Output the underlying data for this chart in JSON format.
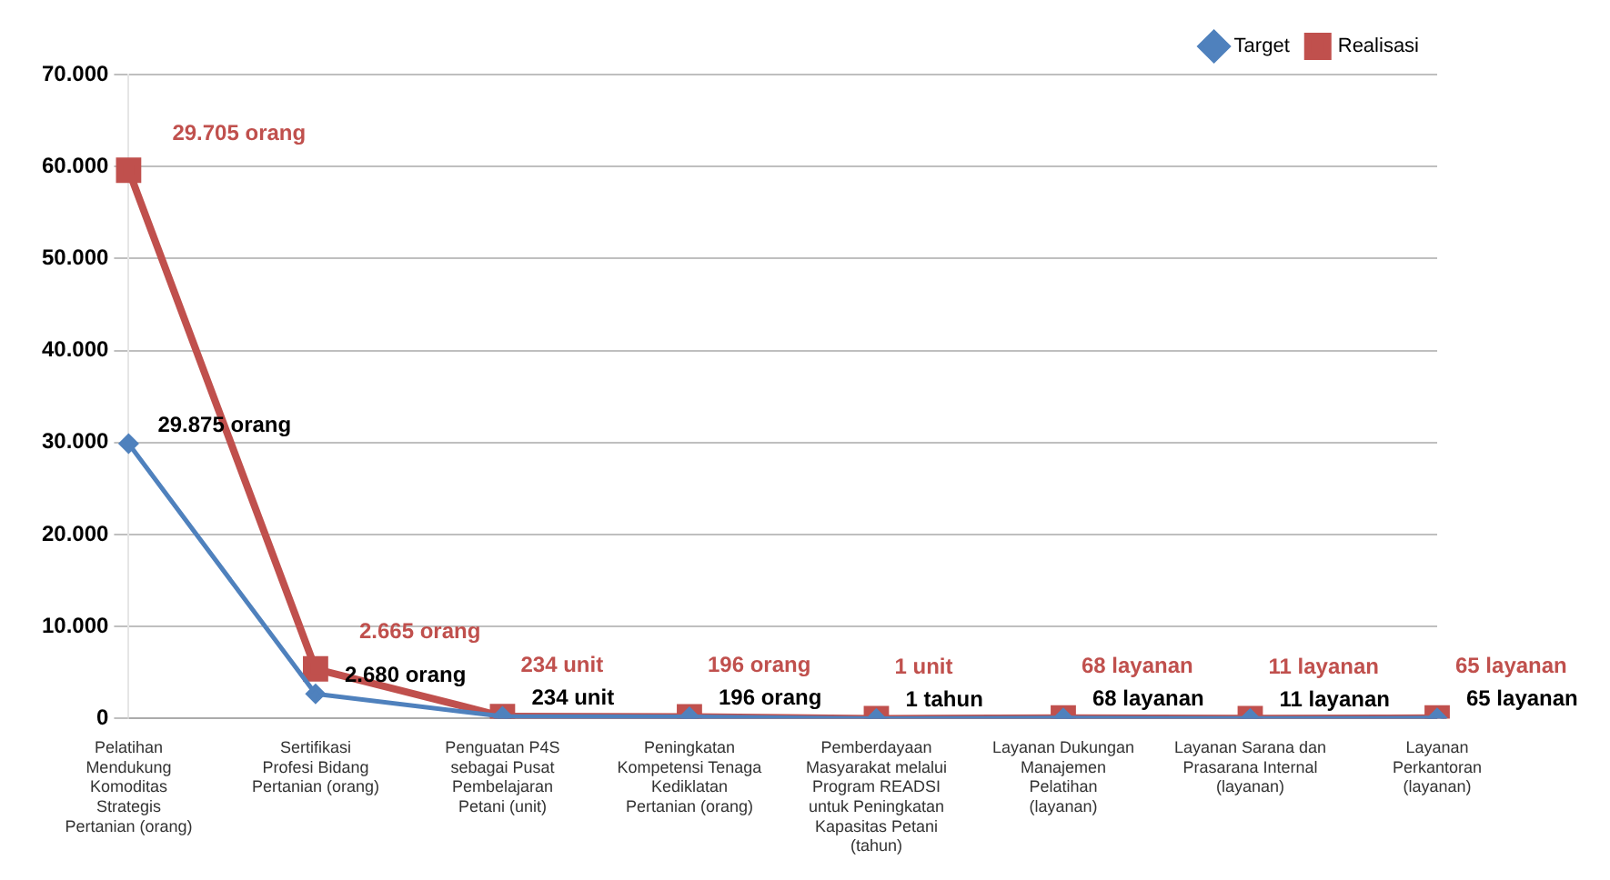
{
  "chart_data": {
    "type": "line",
    "categories": [
      "Pelatihan Mendukung Komoditas Strategis Pertanian (orang)",
      "Sertifikasi Profesi Bidang Pertanian (orang)",
      "Penguatan P4S sebagai Pusat Pembelajaran Petani (unit)",
      "Peningkatan Kompetensi Tenaga Kediklatan Pertanian (orang)",
      "Pemberdayaan Masyarakat melalui Program READSI untuk Peningkatan Kapasitas Petani (tahun)",
      "Layanan Dukungan Manajemen Pelatihan (layanan)",
      "Layanan Sarana dan Prasarana Internal (layanan)",
      "Layanan Perkantoran (layanan)"
    ],
    "series": [
      {
        "name": "Realisasi",
        "color": "#c0504d",
        "marker": "square",
        "values": [
          59600,
          5400,
          234,
          196,
          1,
          68,
          11,
          65
        ],
        "value_labels": [
          null,
          null,
          "234 unit",
          "196 orang",
          "1 unit",
          "68 layanan",
          "11 layanan",
          "65 layanan"
        ]
      },
      {
        "name": "Target",
        "color": "#4f81bd",
        "marker": "diamond",
        "values": [
          29875,
          2680,
          234,
          196,
          1,
          68,
          11,
          65
        ],
        "value_labels": [
          "29.875 orang",
          "2.680 orang",
          "234 unit",
          "196 orang",
          "1 tahun",
          "68 layanan",
          "11 layanan",
          "65 layanan"
        ]
      }
    ],
    "ylim": [
      0,
      70000
    ],
    "yticks": [
      {
        "value": 0,
        "label": "0"
      },
      {
        "value": 10000,
        "label": "10.000"
      },
      {
        "value": 20000,
        "label": "20.000"
      },
      {
        "value": 30000,
        "label": "30.000"
      },
      {
        "value": 40000,
        "label": "40.000"
      },
      {
        "value": 50000,
        "label": "50.000"
      },
      {
        "value": 60000,
        "label": "60.000"
      },
      {
        "value": 70000,
        "label": "70.000"
      }
    ],
    "annotations": [
      "29.705 orang",
      "2.665 orang"
    ],
    "grid": "y",
    "legend": "top right",
    "line_style": "solid"
  }
}
